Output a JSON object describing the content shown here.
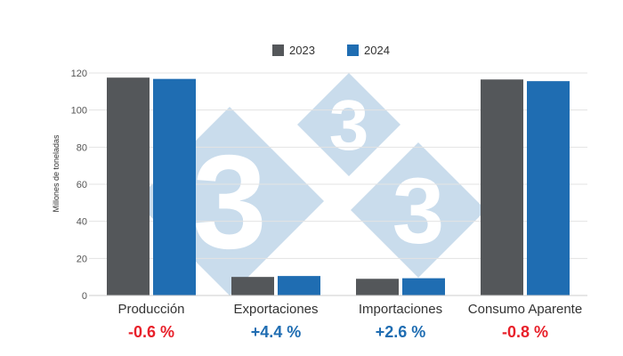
{
  "chart_data": {
    "type": "bar",
    "categories": [
      "Producción",
      "Exportaciones",
      "Importaciones",
      "Consumo Aparente"
    ],
    "series": [
      {
        "name": "2023",
        "values": [
          117.5,
          10.0,
          9.0,
          116.5
        ],
        "color": "#54575a"
      },
      {
        "name": "2024",
        "values": [
          116.8,
          10.5,
          9.3,
          115.6
        ],
        "color": "#1f6db2"
      }
    ],
    "changes": [
      {
        "text": "-0.6 %",
        "color": "#e8202a"
      },
      {
        "text": "+4.4 %",
        "color": "#1f6db2"
      },
      {
        "text": "+2.6 %",
        "color": "#1f6db2"
      },
      {
        "text": "-0.8 %",
        "color": "#e8202a"
      }
    ],
    "ylabel": "Millones de toneladas",
    "xlabel": "",
    "ylim": [
      0,
      120
    ],
    "yticks": [
      0,
      20,
      40,
      60,
      80,
      100,
      120
    ],
    "grid": true,
    "legend_position": "top-center",
    "watermark": {
      "glyph": "3",
      "color": "#c9dcec"
    }
  }
}
